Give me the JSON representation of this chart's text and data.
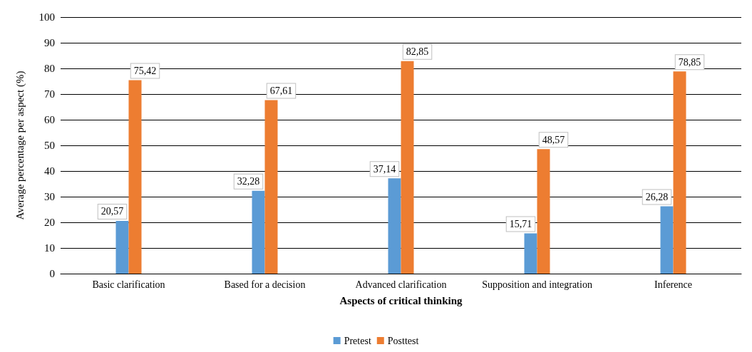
{
  "chart_data": {
    "type": "bar",
    "xlabel": "Aspects of critical thinking",
    "ylabel": "Average percentage per aspect (%)",
    "categories": [
      "Basic clarification",
      "Based for a decision",
      "Advanced clarification",
      "Supposition and integration",
      "Inference"
    ],
    "series": [
      {
        "name": "Pretest",
        "color": "#5b9bd5",
        "values": [
          20.57,
          32.28,
          37.14,
          15.71,
          26.28
        ],
        "value_labels": [
          "20,57",
          "32,28",
          "37,14",
          "15,71",
          "26,28"
        ]
      },
      {
        "name": "Posttest",
        "color": "#ed7d31",
        "values": [
          75.42,
          67.61,
          82.85,
          48.57,
          78.85
        ],
        "value_labels": [
          "75,42",
          "67,61",
          "82,85",
          "48,57",
          "78,85"
        ]
      }
    ],
    "ylim": [
      0,
      100
    ],
    "yticks": [
      0,
      10,
      20,
      30,
      40,
      50,
      60,
      70,
      80,
      90,
      100
    ],
    "grid": "y",
    "legend": "bottom"
  }
}
